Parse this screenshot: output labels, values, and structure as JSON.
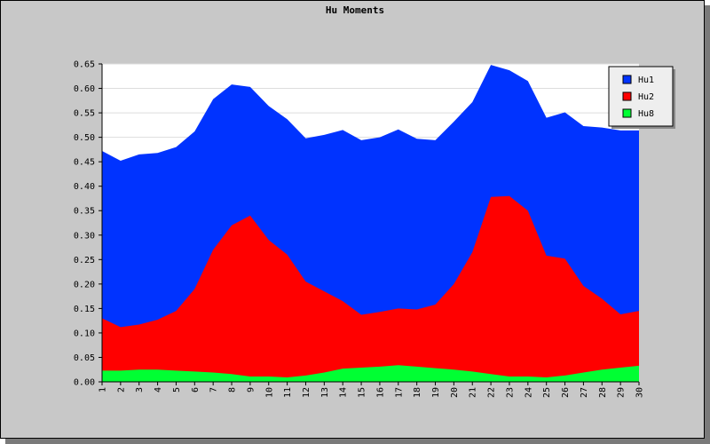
{
  "chart_data": {
    "type": "area",
    "title": "Hu Moments",
    "xlabel": "",
    "ylabel": "",
    "stacked": false,
    "x": [
      1,
      2,
      3,
      4,
      5,
      6,
      7,
      8,
      9,
      10,
      11,
      12,
      13,
      14,
      15,
      16,
      17,
      18,
      19,
      20,
      21,
      22,
      23,
      24,
      25,
      26,
      27,
      28,
      29,
      30
    ],
    "ylim": [
      0,
      0.65
    ],
    "yticks": [
      "0.00",
      "0.05",
      "0.10",
      "0.15",
      "0.20",
      "0.25",
      "0.30",
      "0.35",
      "0.40",
      "0.45",
      "0.50",
      "0.55",
      "0.60",
      "0.65"
    ],
    "grid": true,
    "legend_position": "top-right",
    "series": [
      {
        "name": "Hu1",
        "color": "#0033ff",
        "values": [
          0.472,
          0.452,
          0.465,
          0.468,
          0.48,
          0.512,
          0.578,
          0.608,
          0.603,
          0.564,
          0.537,
          0.498,
          0.505,
          0.515,
          0.494,
          0.5,
          0.516,
          0.497,
          0.494,
          0.532,
          0.572,
          0.648,
          0.637,
          0.615,
          0.54,
          0.551,
          0.523,
          0.52,
          0.514,
          0.514
        ]
      },
      {
        "name": "Hu2",
        "color": "#ff0000",
        "values": [
          0.13,
          0.112,
          0.117,
          0.127,
          0.145,
          0.19,
          0.27,
          0.32,
          0.34,
          0.29,
          0.26,
          0.205,
          0.185,
          0.165,
          0.137,
          0.143,
          0.15,
          0.148,
          0.158,
          0.2,
          0.265,
          0.378,
          0.38,
          0.35,
          0.258,
          0.252,
          0.196,
          0.17,
          0.138,
          0.145
        ]
      },
      {
        "name": "Hu8",
        "color": "#00ff33",
        "values": [
          0.023,
          0.023,
          0.025,
          0.025,
          0.023,
          0.021,
          0.019,
          0.016,
          0.011,
          0.011,
          0.009,
          0.013,
          0.019,
          0.027,
          0.029,
          0.031,
          0.034,
          0.031,
          0.028,
          0.025,
          0.021,
          0.016,
          0.011,
          0.011,
          0.009,
          0.013,
          0.019,
          0.025,
          0.029,
          0.033
        ]
      }
    ]
  }
}
